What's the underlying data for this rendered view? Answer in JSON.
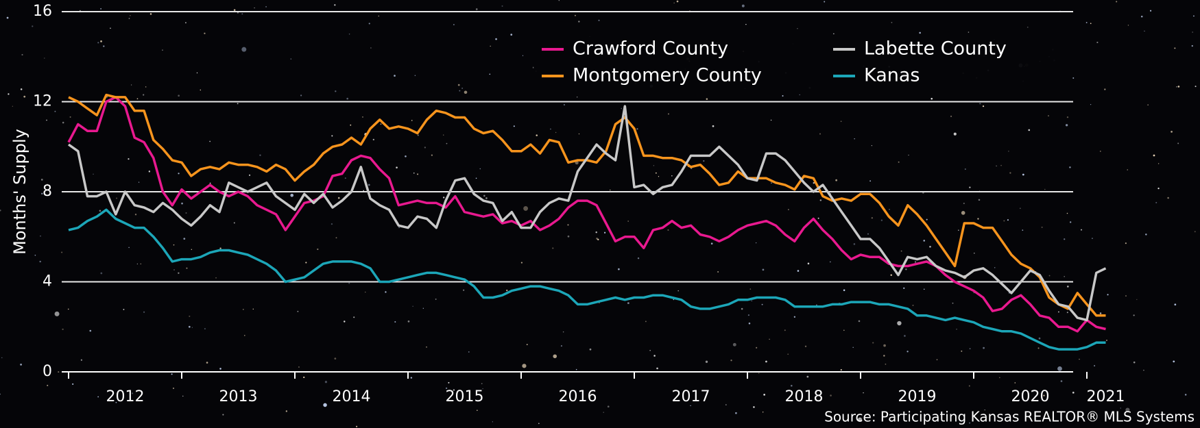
{
  "chart_data": {
    "type": "line",
    "y_label": "Months' Supply",
    "source": "Source: Participating Kansas REALTOR® MLS Systems",
    "categories": [
      null,
      null,
      null,
      null,
      null,
      null,
      "2012",
      null,
      null,
      null,
      null,
      null,
      null,
      null,
      null,
      null,
      null,
      null,
      "2013",
      null,
      null,
      null,
      null,
      null,
      null,
      null,
      null,
      null,
      null,
      null,
      "2014",
      null,
      null,
      null,
      null,
      null,
      null,
      null,
      null,
      null,
      null,
      null,
      "2015",
      null,
      null,
      null,
      null,
      null,
      null,
      null,
      null,
      null,
      null,
      null,
      "2016",
      null,
      null,
      null,
      null,
      null,
      null,
      null,
      null,
      null,
      null,
      null,
      "2017",
      null,
      null,
      null,
      null,
      null,
      null,
      null,
      null,
      null,
      null,
      null,
      "2018",
      null,
      null,
      null,
      null,
      null,
      null,
      null,
      null,
      null,
      null,
      null,
      "2019",
      null,
      null,
      null,
      null,
      null,
      null,
      null,
      null,
      null,
      null,
      null,
      "2020",
      null,
      null,
      null,
      null,
      null,
      null,
      null,
      "2021"
    ],
    "ylim": [
      0,
      16
    ],
    "yticks": [
      0,
      4,
      8,
      12,
      16
    ],
    "grid": true,
    "legend": "upper right",
    "series": [
      {
        "name": "Crawford County",
        "color": "#e8198f",
        "values": [
          10.2,
          11.0,
          10.7,
          10.7,
          12.0,
          12.2,
          11.8,
          10.4,
          10.2,
          9.5,
          8.0,
          7.4,
          8.1,
          7.7,
          8.0,
          8.3,
          8.0,
          7.8,
          8.0,
          7.8,
          7.4,
          7.2,
          7.0,
          6.3,
          6.9,
          7.5,
          7.6,
          7.8,
          8.7,
          8.8,
          9.4,
          9.6,
          9.5,
          9.0,
          8.6,
          7.4,
          7.5,
          7.6,
          7.5,
          7.5,
          7.3,
          7.8,
          7.1,
          7.0,
          6.9,
          7.0,
          6.6,
          6.7,
          6.5,
          6.7,
          6.3,
          6.5,
          6.8,
          7.3,
          7.6,
          7.6,
          7.4,
          6.6,
          5.8,
          6.0,
          6.0,
          5.5,
          6.3,
          6.4,
          6.7,
          6.4,
          6.5,
          6.1,
          6.0,
          5.8,
          6.0,
          6.3,
          6.5,
          6.6,
          6.7,
          6.5,
          6.1,
          5.8,
          6.4,
          6.8,
          6.3,
          5.9,
          5.4,
          5.0,
          5.2,
          5.1,
          5.1,
          4.8,
          4.7,
          4.7,
          4.8,
          4.9,
          4.7,
          4.3,
          4.0,
          3.8,
          3.6,
          3.3,
          2.7,
          2.8,
          3.2,
          3.4,
          3.0,
          2.5,
          2.4,
          2.0,
          2.0,
          1.8,
          2.3,
          2.0,
          1.9
        ]
      },
      {
        "name": "Montgomery County",
        "color": "#f7941d",
        "values": [
          12.2,
          12.0,
          11.7,
          11.4,
          12.3,
          12.2,
          12.2,
          11.6,
          11.6,
          10.3,
          9.9,
          9.4,
          9.3,
          8.7,
          9.0,
          9.1,
          9.0,
          9.3,
          9.2,
          9.2,
          9.1,
          8.9,
          9.2,
          9.0,
          8.5,
          8.9,
          9.2,
          9.7,
          10.0,
          10.1,
          10.4,
          10.1,
          10.8,
          11.2,
          10.8,
          10.9,
          10.8,
          10.6,
          11.2,
          11.6,
          11.5,
          11.3,
          11.3,
          10.8,
          10.6,
          10.7,
          10.3,
          9.8,
          9.8,
          10.1,
          9.7,
          10.3,
          10.2,
          9.3,
          9.4,
          9.4,
          9.3,
          9.8,
          11.0,
          11.3,
          10.8,
          9.6,
          9.6,
          9.5,
          9.5,
          9.4,
          9.1,
          9.2,
          8.8,
          8.3,
          8.4,
          8.9,
          8.6,
          8.6,
          8.6,
          8.4,
          8.3,
          8.1,
          8.7,
          8.6,
          7.8,
          7.6,
          7.7,
          7.6,
          7.9,
          7.9,
          7.5,
          6.9,
          6.5,
          7.4,
          7.0,
          6.5,
          5.9,
          5.3,
          4.7,
          6.6,
          6.6,
          6.4,
          6.4,
          5.8,
          5.2,
          4.8,
          4.6,
          4.2,
          3.3,
          3.0,
          2.8,
          3.5,
          3.0,
          2.5,
          2.5
        ]
      },
      {
        "name": "Labette County",
        "color": "#c8c8c8",
        "values": [
          10.1,
          9.8,
          7.8,
          7.8,
          8.0,
          7.0,
          8.0,
          7.4,
          7.3,
          7.1,
          7.5,
          7.2,
          6.8,
          6.5,
          6.9,
          7.4,
          7.1,
          8.4,
          8.2,
          8.0,
          8.2,
          8.4,
          7.8,
          7.5,
          7.2,
          7.9,
          7.5,
          7.9,
          7.3,
          7.6,
          8.0,
          9.1,
          7.7,
          7.4,
          7.2,
          6.5,
          6.4,
          6.9,
          6.8,
          6.4,
          7.6,
          8.5,
          8.6,
          7.9,
          7.6,
          7.5,
          6.7,
          7.1,
          6.4,
          6.4,
          7.1,
          7.5,
          7.7,
          7.6,
          8.9,
          9.5,
          10.1,
          9.7,
          9.4,
          11.8,
          8.2,
          8.3,
          7.9,
          8.2,
          8.3,
          8.9,
          9.6,
          9.6,
          9.6,
          10.0,
          9.6,
          9.2,
          8.6,
          8.5,
          9.7,
          9.7,
          9.4,
          8.9,
          8.4,
          8.0,
          8.3,
          7.7,
          7.1,
          6.5,
          5.9,
          5.9,
          5.5,
          4.9,
          4.3,
          5.1,
          5.0,
          5.1,
          4.7,
          4.5,
          4.4,
          4.2,
          4.5,
          4.6,
          4.3,
          3.9,
          3.5,
          4.0,
          4.5,
          4.3,
          3.6,
          3.0,
          2.9,
          2.4,
          2.3,
          4.4,
          4.6
        ]
      },
      {
        "name": "Kanas",
        "color": "#1ca6b8",
        "values": [
          6.3,
          6.4,
          6.7,
          6.9,
          7.2,
          6.8,
          6.6,
          6.4,
          6.4,
          6.0,
          5.5,
          4.9,
          5.0,
          5.0,
          5.1,
          5.3,
          5.4,
          5.4,
          5.3,
          5.2,
          5.0,
          4.8,
          4.5,
          4.0,
          4.1,
          4.2,
          4.5,
          4.8,
          4.9,
          4.9,
          4.9,
          4.8,
          4.6,
          4.0,
          4.0,
          4.1,
          4.2,
          4.3,
          4.4,
          4.4,
          4.3,
          4.2,
          4.1,
          3.8,
          3.3,
          3.3,
          3.4,
          3.6,
          3.7,
          3.8,
          3.8,
          3.7,
          3.6,
          3.4,
          3.0,
          3.0,
          3.1,
          3.2,
          3.3,
          3.2,
          3.3,
          3.3,
          3.4,
          3.4,
          3.3,
          3.2,
          2.9,
          2.8,
          2.8,
          2.9,
          3.0,
          3.2,
          3.2,
          3.3,
          3.3,
          3.3,
          3.2,
          2.9,
          2.9,
          2.9,
          2.9,
          3.0,
          3.0,
          3.1,
          3.1,
          3.1,
          3.0,
          3.0,
          2.9,
          2.8,
          2.5,
          2.5,
          2.4,
          2.3,
          2.4,
          2.3,
          2.2,
          2.0,
          1.9,
          1.8,
          1.8,
          1.7,
          1.5,
          1.3,
          1.1,
          1.0,
          1.0,
          1.0,
          1.1,
          1.3,
          1.3
        ]
      }
    ]
  }
}
